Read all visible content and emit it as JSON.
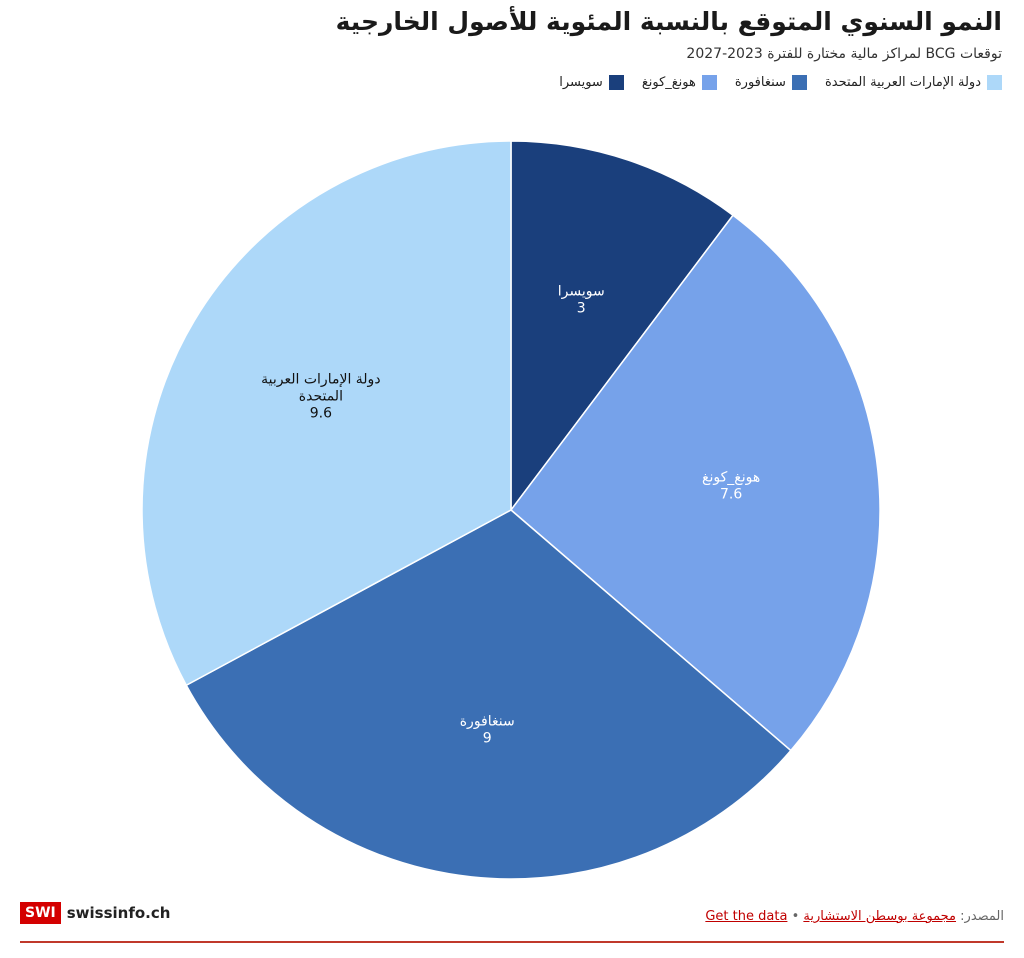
{
  "header": {
    "title": "النمو السنوي المتوقع بالنسبة المئوية للأصول الخارجية",
    "subtitle": "توقعات BCG لمراكز مالية مختارة للفترة 2023-2027"
  },
  "legend": [
    {
      "label": "دولة الإمارات العربية المتحدة",
      "color": "#add8f9"
    },
    {
      "label": "سنغافورة",
      "color": "#3b6fb4"
    },
    {
      "label": "هونغ_كونغ",
      "color": "#76a2ea"
    },
    {
      "label": "سويسرا",
      "color": "#1a3f7c"
    }
  ],
  "chart_data": {
    "type": "pie",
    "slices": [
      {
        "label": "سويسرا",
        "value": 3,
        "value_text": "3",
        "color": "#1a3f7c"
      },
      {
        "label": "هونغ_كونغ",
        "value": 7.6,
        "value_text": "7.6",
        "color": "#76a2ea"
      },
      {
        "label": "سنغافورة",
        "value": 9,
        "value_text": "9",
        "color": "#3b6fb4"
      },
      {
        "label": "دولة الإمارات العربية المتحدة",
        "label_lines": [
          "دولة الإمارات العربية",
          "المتحدة"
        ],
        "value": 9.6,
        "value_text": "9.6",
        "color": "#add8f9"
      }
    ],
    "start": "12 o'clock",
    "direction": "clockwise"
  },
  "footer": {
    "logo_mark": "SWI",
    "logo_name": "swissinfo.ch",
    "source_prefix": "المصدر:",
    "source_link": "مجموعة بوسطن الاستشارية",
    "separator": "•",
    "get_data": "Get the data"
  }
}
